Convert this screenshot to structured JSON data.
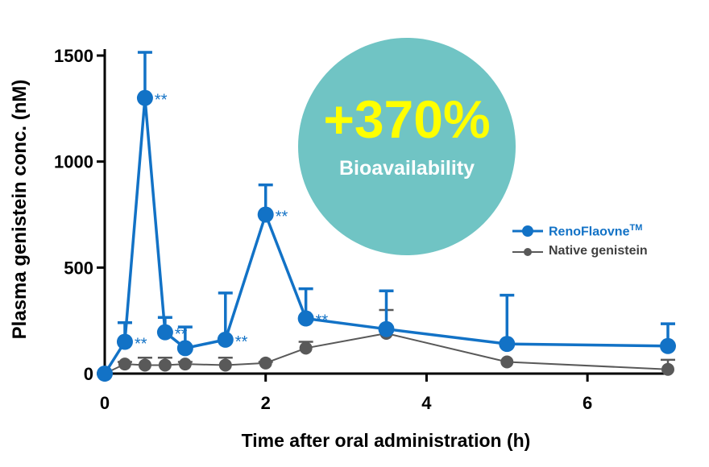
{
  "chart_data": {
    "type": "line",
    "xlabel": "Time after oral administration (h)",
    "ylabel": "Plasma genistein conc. (nM)",
    "xlim": [
      0,
      7
    ],
    "ylim": [
      0,
      1500
    ],
    "x_ticks": [
      "0",
      "2",
      "4",
      "6"
    ],
    "x_tick_values": [
      0,
      2,
      4,
      6
    ],
    "y_ticks": [
      "0",
      "500",
      "1000",
      "1500"
    ],
    "y_tick_values": [
      0,
      500,
      1000,
      1500
    ],
    "series": [
      {
        "name": "RenoFlaovne",
        "name_sup": "TM",
        "color": "#1272c6",
        "x": [
          0,
          0.25,
          0.5,
          0.75,
          1,
          1.5,
          2,
          2.5,
          3.5,
          5,
          7
        ],
        "values": [
          0,
          150,
          1300,
          195,
          120,
          160,
          750,
          260,
          210,
          140,
          130
        ],
        "error_upper": [
          0,
          240,
          1515,
          265,
          220,
          380,
          890,
          400,
          390,
          370,
          235
        ],
        "significance": [
          "",
          "**",
          "**",
          "**",
          "",
          "**",
          "**",
          "**",
          "",
          "",
          ""
        ]
      },
      {
        "name": "Native genistein",
        "color": "#595959",
        "x": [
          0,
          0.25,
          0.5,
          0.75,
          1,
          1.5,
          2,
          2.5,
          3.5,
          5,
          7
        ],
        "values": [
          0,
          45,
          40,
          40,
          45,
          40,
          50,
          120,
          190,
          55,
          20
        ],
        "error_upper": [
          0,
          55,
          75,
          75,
          55,
          75,
          55,
          150,
          300,
          55,
          65
        ]
      }
    ]
  },
  "badge": {
    "value": "+370%",
    "label": "Bioavailability",
    "color": "#70c4c4",
    "value_color": "#ffff00"
  }
}
